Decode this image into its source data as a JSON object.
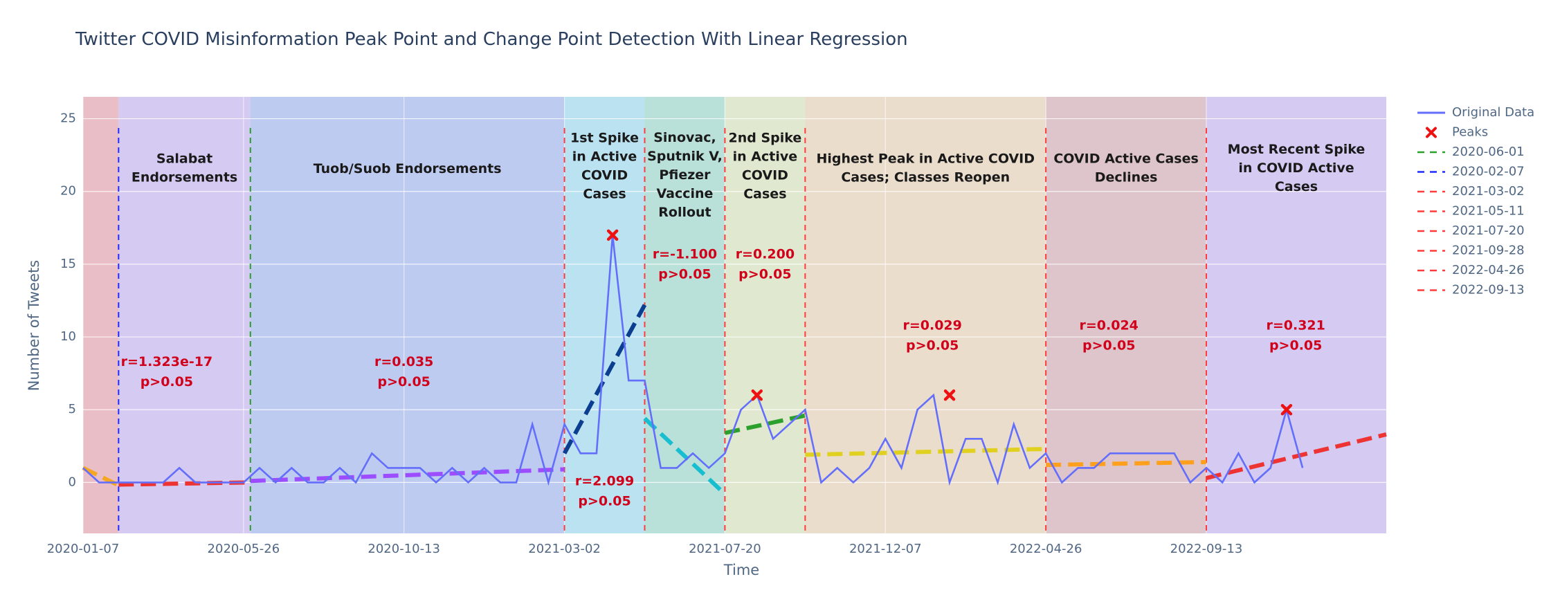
{
  "chart_data": {
    "type": "line",
    "title": "Twitter COVID Misinformation Peak Point and Change Point Detection With Linear Regression",
    "xlabel": "Time",
    "ylabel": "Number of Tweets",
    "xlim": [
      "2020-01-07",
      "2023-02-17"
    ],
    "ylim": [
      -3.5,
      26.5
    ],
    "x_ticks": [
      "2020-01-07",
      "2020-05-26",
      "2020-10-13",
      "2021-03-02",
      "2021-07-20",
      "2021-12-07",
      "2022-04-26",
      "2022-09-13"
    ],
    "y_ticks": [
      0,
      5,
      10,
      15,
      20,
      25
    ],
    "grid": true,
    "legend_placement": "right",
    "legend": [
      "Original Data",
      "Peaks",
      "2020-06-01",
      "2020-02-07",
      "2021-03-02",
      "2021-05-11",
      "2021-07-20",
      "2021-09-28",
      "2022-04-26",
      "2022-09-13"
    ],
    "series": [
      {
        "name": "Original Data",
        "color": "#636efa",
        "x": [
          "2020-01-07",
          "2020-01-21",
          "2020-02-04",
          "2020-02-18",
          "2020-03-03",
          "2020-03-17",
          "2020-03-31",
          "2020-04-14",
          "2020-04-28",
          "2020-05-12",
          "2020-05-26",
          "2020-06-09",
          "2020-06-23",
          "2020-07-07",
          "2020-07-21",
          "2020-08-04",
          "2020-08-18",
          "2020-09-01",
          "2020-09-15",
          "2020-09-29",
          "2020-10-13",
          "2020-10-27",
          "2020-11-10",
          "2020-11-24",
          "2020-12-08",
          "2020-12-22",
          "2021-01-05",
          "2021-01-19",
          "2021-02-02",
          "2021-02-16",
          "2021-03-02",
          "2021-03-16",
          "2021-03-30",
          "2021-04-13",
          "2021-04-27",
          "2021-05-11",
          "2021-05-25",
          "2021-06-08",
          "2021-06-22",
          "2021-07-06",
          "2021-07-20",
          "2021-08-03",
          "2021-08-17",
          "2021-08-31",
          "2021-09-14",
          "2021-09-28",
          "2021-10-12",
          "2021-10-26",
          "2021-11-09",
          "2021-11-23",
          "2021-12-07",
          "2021-12-21",
          "2022-01-04",
          "2022-01-18",
          "2022-02-01",
          "2022-02-15",
          "2022-03-01",
          "2022-03-15",
          "2022-03-29",
          "2022-04-12",
          "2022-04-26",
          "2022-05-10",
          "2022-05-24",
          "2022-06-07",
          "2022-06-21",
          "2022-07-05",
          "2022-07-19",
          "2022-08-02",
          "2022-08-16",
          "2022-08-30",
          "2022-09-13",
          "2022-09-27",
          "2022-10-11",
          "2022-10-25",
          "2022-11-08",
          "2022-11-22",
          "2022-12-06"
        ],
        "y": [
          1,
          0,
          0,
          0,
          0,
          0,
          1,
          0,
          0,
          0,
          0,
          1,
          0,
          1,
          0,
          0,
          1,
          0,
          2,
          1,
          1,
          1,
          0,
          1,
          0,
          1,
          0,
          0,
          4,
          0,
          4,
          2,
          2,
          17,
          7,
          7,
          1,
          1,
          2,
          1,
          2,
          5,
          6,
          3,
          4,
          5,
          0,
          1,
          0,
          1,
          3,
          1,
          5,
          6,
          0,
          3,
          3,
          0,
          4,
          1,
          2,
          0,
          1,
          1,
          2,
          2,
          2,
          2,
          2,
          0,
          1,
          0,
          2,
          0,
          1,
          5,
          1
        ]
      },
      {
        "name": "Peaks",
        "color": "#ee1111",
        "x": [
          "2021-04-13",
          "2021-08-17",
          "2022-02-01",
          "2022-11-22"
        ],
        "y": [
          17,
          6,
          6,
          5
        ]
      }
    ],
    "change_points": [
      {
        "date": "2020-02-07",
        "color": "#1f2bff"
      },
      {
        "date": "2020-06-01",
        "color": "#2ca02c"
      },
      {
        "date": "2021-03-02",
        "color": "#ff3b3b"
      },
      {
        "date": "2021-05-11",
        "color": "#ff3b3b"
      },
      {
        "date": "2021-07-20",
        "color": "#ff3b3b"
      },
      {
        "date": "2021-09-28",
        "color": "#ff3b3b"
      },
      {
        "date": "2022-04-26",
        "color": "#ff3b3b"
      },
      {
        "date": "2022-09-13",
        "color": "#ff3b3b"
      }
    ],
    "regions": [
      {
        "start": "2020-01-07",
        "end": "2020-02-07",
        "color": "#e9b9c1",
        "label": ""
      },
      {
        "start": "2020-02-07",
        "end": "2020-06-01",
        "color": "#d3c6f2",
        "label": "Salabat\nEndorsements"
      },
      {
        "start": "2020-06-01",
        "end": "2021-03-02",
        "color": "#b8c8f0",
        "label": "Tuob/Suob Endorsements"
      },
      {
        "start": "2021-03-02",
        "end": "2021-05-11",
        "color": "#b5e1f0",
        "label": "1st Spike\nin Active\nCOVID\nCases"
      },
      {
        "start": "2021-05-11",
        "end": "2021-07-20",
        "color": "#b5e0d6",
        "label": "Sinovac,\nSputnik V,\nPfiezer\nVaccine\nRollout"
      },
      {
        "start": "2021-07-20",
        "end": "2021-09-28",
        "color": "#dfe8cb",
        "label": "2nd Spike\nin Active\nCOVID\nCases"
      },
      {
        "start": "2021-09-28",
        "end": "2022-04-26",
        "color": "#ebdcc8",
        "label": "Highest Peak in Active COVID\nCases; Classes Reopen"
      },
      {
        "start": "2022-04-26",
        "end": "2022-09-13",
        "color": "#dcc1c7",
        "label": "COVID Active Cases\nDeclines"
      },
      {
        "start": "2022-09-13",
        "end": "2023-02-17",
        "color": "#d3c6f2",
        "label": "Most Recent Spike\nin COVID Active\nCases"
      }
    ],
    "regressions": [
      {
        "x": [
          "2020-01-07",
          "2020-02-07"
        ],
        "y": [
          1.0,
          -0.2
        ],
        "color": "#f5a623"
      },
      {
        "x": [
          "2020-02-07",
          "2020-06-01"
        ],
        "y": [
          -0.15,
          0.0
        ],
        "color": "#ee3333"
      },
      {
        "x": [
          "2020-06-01",
          "2021-03-02"
        ],
        "y": [
          0.1,
          0.9
        ],
        "color": "#9b4dff"
      },
      {
        "x": [
          "2021-03-02",
          "2021-05-11"
        ],
        "y": [
          2.0,
          12.2
        ],
        "color": "#0b3d91"
      },
      {
        "x": [
          "2021-05-11",
          "2021-07-20"
        ],
        "y": [
          4.4,
          -0.8
        ],
        "color": "#17becf"
      },
      {
        "x": [
          "2021-07-20",
          "2021-09-28"
        ],
        "y": [
          3.4,
          4.6
        ],
        "color": "#2ca02c"
      },
      {
        "x": [
          "2021-09-28",
          "2022-04-26"
        ],
        "y": [
          1.9,
          2.3
        ],
        "color": "#e0d020"
      },
      {
        "x": [
          "2022-04-26",
          "2022-09-13"
        ],
        "y": [
          1.2,
          1.4
        ],
        "color": "#ffa01c"
      },
      {
        "x": [
          "2022-09-13",
          "2023-02-17"
        ],
        "y": [
          0.3,
          3.3
        ],
        "color": "#ee3333"
      }
    ],
    "annotations": [
      {
        "text": "r=1.323e-17\np>0.05",
        "x": "2020-03-20",
        "y": 7.6
      },
      {
        "text": "r=0.035\np>0.05",
        "x": "2020-10-13",
        "y": 7.6
      },
      {
        "text": "r=2.099\np>0.05",
        "x": "2021-04-06",
        "y": -0.6
      },
      {
        "text": "r=-1.100\np>0.05",
        "x": "2021-06-15",
        "y": 15.0
      },
      {
        "text": "r=0.200\np>0.05",
        "x": "2021-08-24",
        "y": 15.0
      },
      {
        "text": "r=0.029\np>0.05",
        "x": "2022-01-17",
        "y": 10.1
      },
      {
        "text": "r=0.024\np>0.05",
        "x": "2022-06-20",
        "y": 10.1
      },
      {
        "text": "r=0.321\np>0.05",
        "x": "2022-11-30",
        "y": 10.1
      }
    ]
  }
}
